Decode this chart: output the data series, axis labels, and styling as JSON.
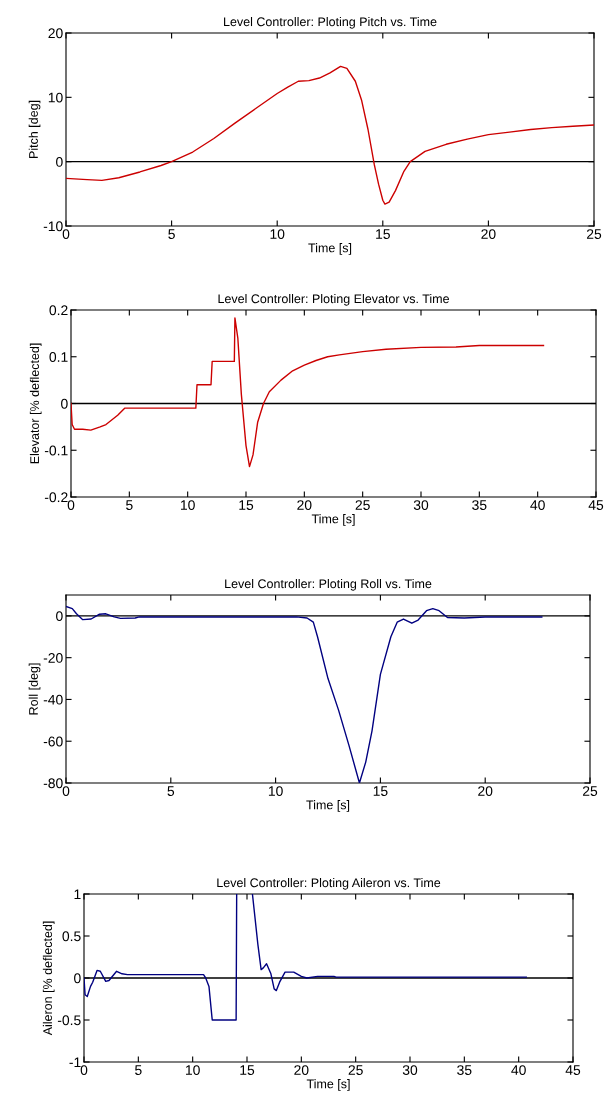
{
  "chart_data": [
    {
      "type": "line",
      "title": "Level Controller: Ploting Pitch vs. Time",
      "xlabel": "Time [s]",
      "ylabel": "Pitch [deg]",
      "xlim": [
        0,
        25
      ],
      "ylim": [
        -10,
        20
      ],
      "xticks": [
        0,
        5,
        10,
        15,
        20,
        25
      ],
      "yticks": [
        -10,
        0,
        10,
        20
      ],
      "ref_lines": [
        {
          "axis": "y",
          "value": 0,
          "color": "#000000"
        }
      ],
      "series": [
        {
          "color": "#cc0000",
          "x": [
            0,
            1,
            1.7,
            2.5,
            3.5,
            4.5,
            5,
            6,
            7,
            8,
            9,
            10,
            10.5,
            11,
            11.5,
            12,
            12.5,
            13,
            13.3,
            13.7,
            14,
            14.3,
            14.6,
            14.8,
            15,
            15.1,
            15.3,
            15.6,
            16,
            16.3,
            17,
            18,
            19,
            20,
            21,
            22,
            23,
            24,
            25
          ],
          "values": [
            -2.6,
            -2.8,
            -2.9,
            -2.5,
            -1.6,
            -0.6,
            0,
            1.5,
            3.6,
            6.0,
            8.3,
            10.6,
            11.6,
            12.5,
            12.6,
            13.0,
            13.8,
            14.8,
            14.5,
            12.5,
            9.5,
            5.0,
            -0.5,
            -3.5,
            -6.0,
            -6.6,
            -6.3,
            -4.5,
            -1.5,
            0,
            1.6,
            2.7,
            3.5,
            4.2,
            4.6,
            5.0,
            5.3,
            5.5,
            5.7
          ]
        }
      ]
    },
    {
      "type": "line",
      "title": "Level Controller: Ploting Elevator vs. Time",
      "xlabel": "Time [s]",
      "ylabel": "Elevator [% deflected]",
      "xlim": [
        0,
        45
      ],
      "ylim": [
        -0.2,
        0.2
      ],
      "xticks": [
        0,
        5,
        10,
        15,
        20,
        25,
        30,
        35,
        40,
        45
      ],
      "yticks": [
        -0.2,
        -0.1,
        0,
        0.1,
        0.2
      ],
      "ref_lines": [
        {
          "axis": "y",
          "value": 0,
          "color": "#000000"
        }
      ],
      "series": [
        {
          "color": "#cc0000",
          "x": [
            0,
            0.1,
            0.3,
            1,
            1.7,
            2.5,
            3,
            4,
            4.6,
            10.7,
            10.8,
            12,
            12.1,
            14,
            14.05,
            14.3,
            14.6,
            15,
            15.3,
            15.6,
            16,
            16.5,
            17,
            18,
            19,
            20,
            21,
            22,
            23,
            25,
            27,
            30,
            33,
            35,
            40.5
          ],
          "values": [
            0,
            -0.045,
            -0.055,
            -0.055,
            -0.057,
            -0.05,
            -0.045,
            -0.025,
            -0.01,
            -0.01,
            0.04,
            0.04,
            0.09,
            0.09,
            0.183,
            0.14,
            0.02,
            -0.09,
            -0.135,
            -0.11,
            -0.04,
            0,
            0.025,
            0.05,
            0.07,
            0.082,
            0.092,
            0.1,
            0.104,
            0.111,
            0.116,
            0.12,
            0.121,
            0.124,
            0.124
          ]
        }
      ]
    },
    {
      "type": "line",
      "title": "Level Controller: Ploting Roll vs. Time",
      "xlabel": "Time [s]",
      "ylabel": "Roll [deg]",
      "xlim": [
        0,
        25
      ],
      "ylim": [
        -80,
        10
      ],
      "xticks": [
        0,
        5,
        10,
        15,
        20,
        25
      ],
      "yticks": [
        -80,
        -60,
        -40,
        -20,
        0
      ],
      "ref_lines": [
        {
          "axis": "y",
          "value": 0,
          "color": "#000000"
        }
      ],
      "series": [
        {
          "color": "#000080",
          "x": [
            0,
            0.3,
            0.5,
            0.8,
            1.2,
            1.6,
            1.9,
            2.3,
            2.6,
            3.3,
            3.5,
            10,
            11,
            11.5,
            11.8,
            12,
            12.5,
            13,
            13.5,
            14,
            14.3,
            14.6,
            15,
            15.5,
            15.8,
            16.1,
            16.5,
            16.8,
            17.2,
            17.5,
            17.8,
            18.2,
            19,
            20,
            22.7
          ],
          "values": [
            4.5,
            3.5,
            1,
            -1.8,
            -1.5,
            0.8,
            1,
            -0.5,
            -1.2,
            -1,
            -0.5,
            -0.5,
            -0.5,
            -1.0,
            -3,
            -10,
            -30,
            -45,
            -62,
            -80,
            -70,
            -55,
            -28,
            -10,
            -3,
            -1.5,
            -3.5,
            -2,
            2.5,
            3.5,
            2.5,
            -0.8,
            -1,
            -0.5,
            -0.5
          ]
        }
      ]
    },
    {
      "type": "line",
      "title": "Level Controller: Ploting Aileron vs. Time",
      "xlabel": "Time [s]",
      "ylabel": "Aileron [% deflected]",
      "xlim": [
        0,
        45
      ],
      "ylim": [
        -1,
        1
      ],
      "xticks": [
        0,
        5,
        10,
        15,
        20,
        25,
        30,
        35,
        40,
        45
      ],
      "yticks": [
        -1,
        -0.5,
        0,
        0.5,
        1
      ],
      "ref_lines": [
        {
          "axis": "y",
          "value": 0,
          "color": "#000000"
        }
      ],
      "series": [
        {
          "color": "#000080",
          "x": [
            0,
            0.1,
            0.3,
            0.6,
            0.8,
            1.2,
            1.5,
            2,
            2.3,
            3,
            3.5,
            4,
            11,
            11.2,
            11.5,
            11.8,
            14,
            14.05,
            14.8,
            15.5,
            16,
            16.3,
            16.5,
            16.8,
            17.2,
            17.5,
            17.7,
            18,
            18.5,
            19.3,
            20,
            20.5,
            21.5,
            23,
            23.2,
            40.7
          ],
          "values": [
            0,
            -0.2,
            -0.22,
            -0.1,
            -0.05,
            0.09,
            0.08,
            -0.04,
            -0.03,
            0.08,
            0.05,
            0.04,
            0.04,
            0.0,
            -0.1,
            -0.5,
            -0.5,
            1,
            null,
            1,
            0.4,
            0.1,
            0.12,
            0.17,
            0.05,
            -0.13,
            -0.15,
            -0.05,
            0.07,
            0.07,
            0.02,
            0,
            0.02,
            0.02,
            0.01,
            0.01
          ]
        }
      ]
    }
  ]
}
